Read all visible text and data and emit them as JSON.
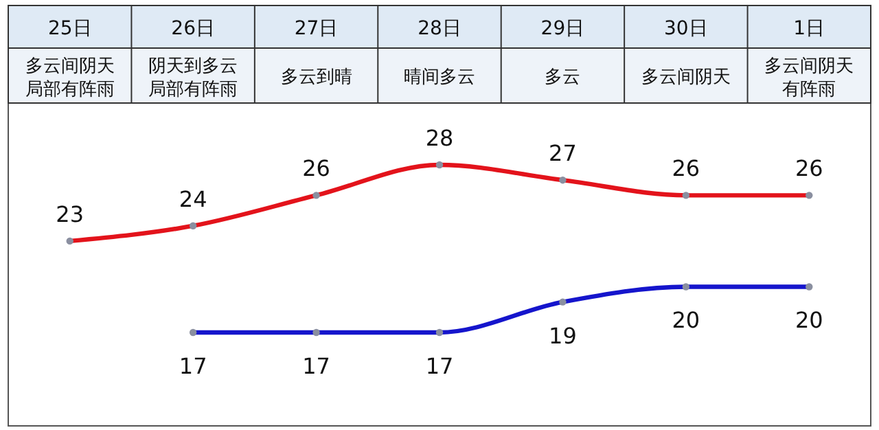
{
  "chart_data": {
    "type": "line",
    "categories": [
      "25日",
      "26日",
      "27日",
      "28日",
      "29日",
      "30日",
      "1日"
    ],
    "annotations": [
      "多云间阴天局部有阵雨",
      "阴天到多云局部有阵雨",
      "多云到晴",
      "晴间多云",
      "多云",
      "多云间阴天",
      "多云间阴天有阵雨"
    ],
    "series": [
      {
        "color": "#e3131b",
        "values": [
          23,
          24,
          26,
          28,
          27,
          26,
          26
        ]
      },
      {
        "color": "#1515cc",
        "values": [
          null,
          17,
          17,
          17,
          19,
          20,
          20
        ]
      }
    ],
    "data_labels": true,
    "marker": "circle",
    "line_style": "solid",
    "grid": false
  }
}
